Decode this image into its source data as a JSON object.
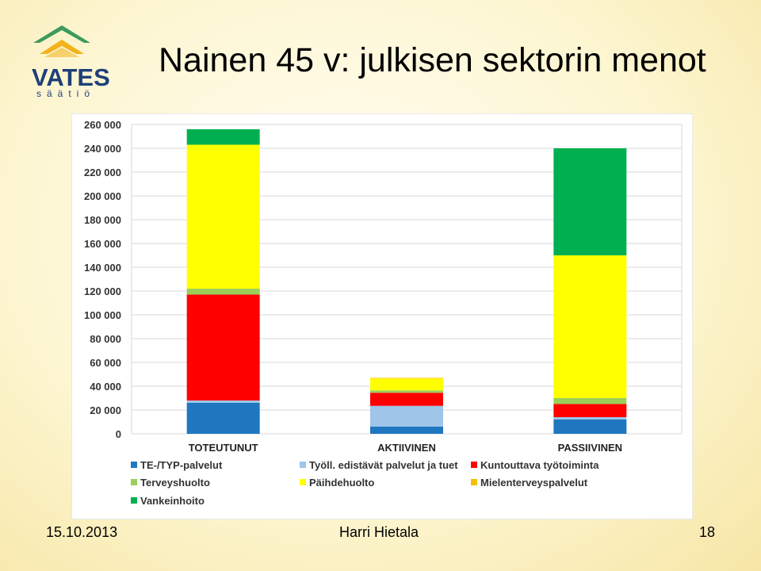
{
  "slide": {
    "title": "Nainen 45 v: julkisen sektorin menot",
    "logo_name": "VATES",
    "logo_sub": "säätiö",
    "footer_date": "15.10.2013",
    "footer_author": "Harri Hietala",
    "footer_page": "18"
  },
  "colors": {
    "logo_green": "#3e9a5d",
    "logo_yellow": "#f2b31b",
    "logo_blue": "#1f3f7a"
  },
  "chart_data": {
    "type": "bar",
    "stacked": true,
    "title": "",
    "xlabel": "",
    "ylabel": "",
    "ylim": [
      0,
      260000
    ],
    "yticks": [
      0,
      20000,
      40000,
      60000,
      80000,
      100000,
      120000,
      140000,
      160000,
      180000,
      200000,
      220000,
      240000,
      260000
    ],
    "ytick_labels": [
      "0",
      "20 000",
      "40 000",
      "60 000",
      "80 000",
      "100 000",
      "120 000",
      "140 000",
      "160 000",
      "180 000",
      "200 000",
      "220 000",
      "240 000",
      "260 000"
    ],
    "grid": true,
    "legend_position": "bottom",
    "categories": [
      "TOTEUTUNUT",
      "AKTIIVINEN",
      "PASSIIVINEN"
    ],
    "series": [
      {
        "name": "TE-/TYP-palvelut",
        "color": "#1f77c0",
        "values": [
          26000,
          6000,
          12000
        ]
      },
      {
        "name": "Työll. edistävät palvelut ja tuet",
        "color": "#9fc5e8",
        "values": [
          2000,
          17500,
          2000
        ]
      },
      {
        "name": "Kuntouttava työtoiminta",
        "color": "#ff0000",
        "values": [
          89000,
          11000,
          11000
        ]
      },
      {
        "name": "Terveyshuolto",
        "color": "#9bcf5a",
        "values": [
          5000,
          2000,
          5000
        ]
      },
      {
        "name": "Päihdehuolto",
        "color": "#ffff00",
        "values": [
          121000,
          10000,
          120000
        ]
      },
      {
        "name": "Mielenterveyspalvelut",
        "color": "#f5c000",
        "values": [
          0,
          500,
          0
        ]
      },
      {
        "name": "Vankeinhoito",
        "color": "#00b050",
        "values": [
          13000,
          0,
          90000
        ]
      }
    ]
  }
}
